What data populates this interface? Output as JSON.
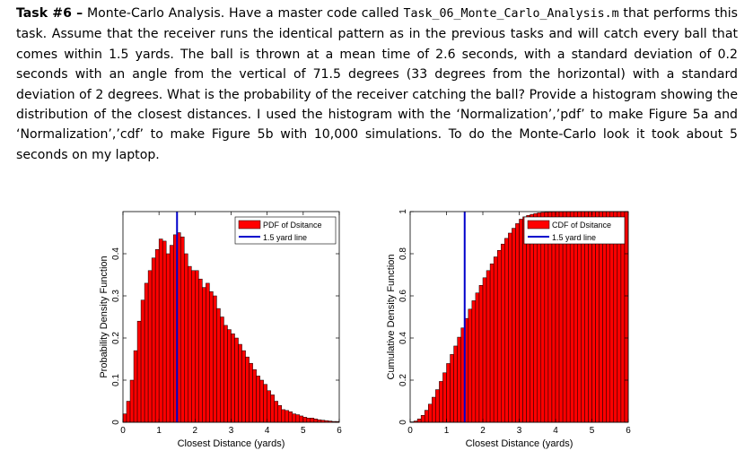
{
  "task": {
    "heading": "Task #6 –",
    "intro": " Monte-Carlo Analysis. Have a master code called ",
    "filename": "Task_06_Monte_Carlo_Analysis.m",
    "body": " that performs this task.  Assume that the receiver runs the identical pattern as in the previous tasks and will catch every ball that comes within 1.5 yards. The ball is thrown at a mean time of 2.6 seconds, with a standard deviation of 0.2 seconds with an angle from the vertical of 71.5 degrees (33 degrees from the horizontal) with a standard deviation of 2 degrees.  What is the probability of the receiver catching the ball? Provide a histogram showing the distribution of the closest distances.  I used the histogram with the ‘Normalization’,’pdf’ to make Figure 5a and ‘Normalization’,’cdf’ to make Figure 5b with 10,000 simulations.  To do the Monte-Carlo look it took about 5 seconds on my laptop."
  },
  "colors": {
    "bar_fill": "#ff0000",
    "bar_edge": "#000000",
    "line": "#0000cc"
  },
  "chart_data": [
    {
      "type": "bar",
      "xlabel": "Closest Distance (yards)",
      "ylabel": "Probability Density Function",
      "xlim": [
        0,
        6
      ],
      "ylim": [
        0,
        0.5
      ],
      "xticks": [
        "0",
        "1",
        "2",
        "3",
        "4",
        "5",
        "6"
      ],
      "yticks": [
        "0",
        "0.1",
        "0.2",
        "0.3",
        "0.4"
      ],
      "legend": [
        "PDF of Dsitance",
        "1.5 yard line"
      ],
      "legend_location": "top-right",
      "bin_width": 0.1,
      "bin_start": 0,
      "values": [
        0.02,
        0.05,
        0.1,
        0.17,
        0.24,
        0.29,
        0.33,
        0.36,
        0.39,
        0.41,
        0.435,
        0.43,
        0.4,
        0.42,
        0.445,
        0.45,
        0.44,
        0.4,
        0.37,
        0.36,
        0.36,
        0.34,
        0.32,
        0.33,
        0.31,
        0.3,
        0.27,
        0.25,
        0.23,
        0.22,
        0.21,
        0.2,
        0.185,
        0.17,
        0.155,
        0.14,
        0.125,
        0.11,
        0.1,
        0.09,
        0.075,
        0.065,
        0.05,
        0.04,
        0.03,
        0.028,
        0.025,
        0.02,
        0.018,
        0.015,
        0.012,
        0.01,
        0.01,
        0.008,
        0.006,
        0.005,
        0.004,
        0.003,
        0.002,
        0.002
      ],
      "vline_x": 1.5
    },
    {
      "type": "bar",
      "xlabel": "Closest Distance (yards)",
      "ylabel": "Cumulative Density Function",
      "xlim": [
        0,
        6
      ],
      "ylim": [
        0,
        1
      ],
      "xticks": [
        "0",
        "1",
        "2",
        "3",
        "4",
        "5",
        "6"
      ],
      "yticks": [
        "0",
        "0.2",
        "0.4",
        "0.6",
        "0.8",
        "1"
      ],
      "legend": [
        "CDF of Dsitance",
        "1.5 yard line"
      ],
      "legend_location": "top-right",
      "bin_width": 0.1,
      "bin_start": 0,
      "values": [
        0.002,
        0.006,
        0.016,
        0.033,
        0.057,
        0.086,
        0.119,
        0.155,
        0.194,
        0.235,
        0.279,
        0.322,
        0.362,
        0.404,
        0.448,
        0.493,
        0.537,
        0.577,
        0.614,
        0.65,
        0.686,
        0.72,
        0.752,
        0.785,
        0.816,
        0.846,
        0.873,
        0.898,
        0.921,
        0.943,
        0.964,
        0.975,
        0.982,
        0.987,
        0.991,
        0.994,
        0.996,
        0.997,
        0.998,
        0.9985,
        0.999,
        0.9993,
        0.9995,
        0.9996,
        0.9997,
        0.9998,
        0.9998,
        0.9999,
        0.9999,
        0.9999,
        1,
        1,
        1,
        1,
        1,
        1,
        1,
        1,
        1,
        1
      ],
      "vline_x": 1.5
    }
  ]
}
